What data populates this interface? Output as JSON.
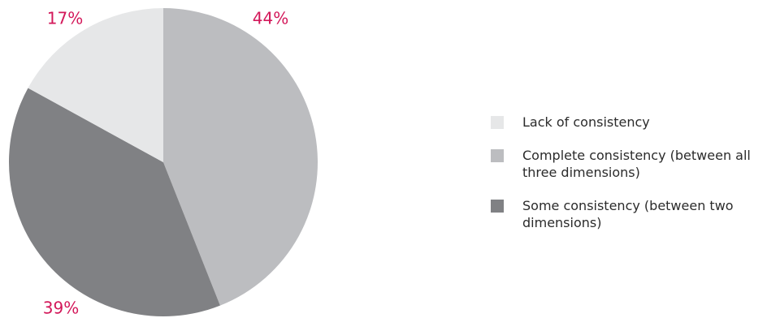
{
  "colors": {
    "lack": "#e6e7e8",
    "complete": "#bcbdc0",
    "some": "#808184",
    "label": "#d3185a"
  },
  "chart_data": {
    "type": "pie",
    "slices": [
      {
        "label": "Complete consistency (between all three dimensions)",
        "value": 44,
        "value_label": "44%",
        "color": "#bcbdc0"
      },
      {
        "label": "Some consistency (between two dimensions)",
        "value": 39,
        "value_label": "39%",
        "color": "#808184"
      },
      {
        "label": "Lack of consistency",
        "value": 17,
        "value_label": "17%",
        "color": "#e6e7e8"
      }
    ],
    "start": "12 o'clock",
    "direction": "clockwise",
    "legend": {
      "position": "right",
      "entries": [
        {
          "label": "Lack of consistency",
          "color": "#e6e7e8"
        },
        {
          "label": "Complete consistency (between all three dimensions)",
          "color": "#bcbdc0"
        },
        {
          "label": "Some consistency (between two dimensions)",
          "color": "#808184"
        }
      ]
    }
  }
}
